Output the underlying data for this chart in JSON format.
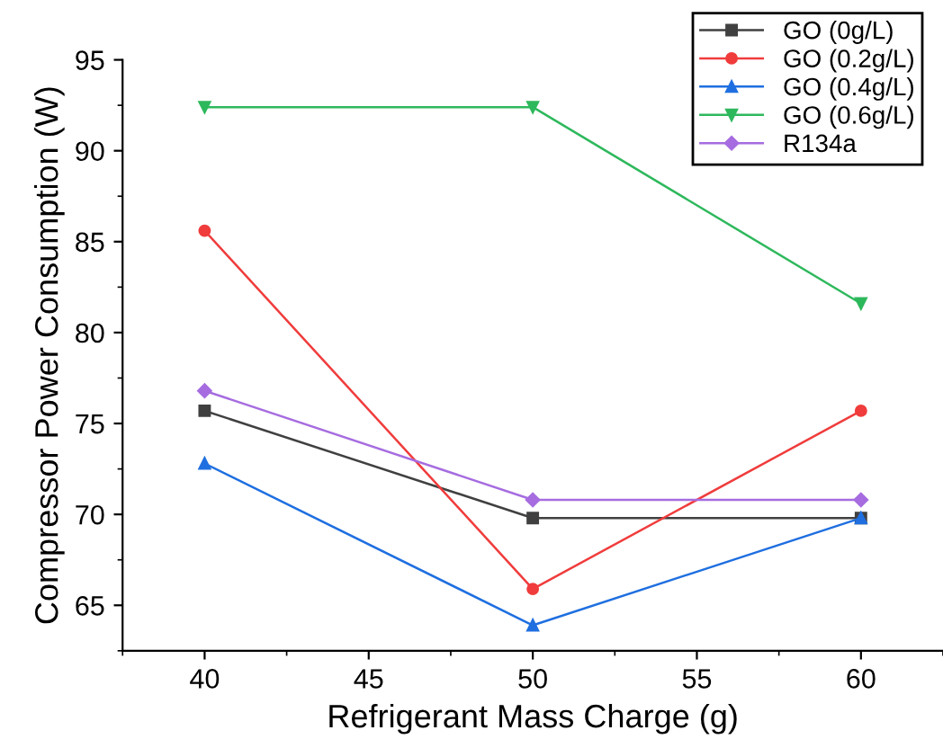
{
  "chart_data": {
    "type": "line",
    "xlabel": "Refrigerant Mass Charge (g)",
    "ylabel": "Compressor Power Consumption (W)",
    "x": [
      40,
      50,
      60
    ],
    "xlim": [
      37.5,
      62.5
    ],
    "xticks": [
      40,
      45,
      50,
      55,
      60
    ],
    "ylim": [
      62.5,
      95
    ],
    "yticks": [
      65,
      70,
      75,
      80,
      85,
      90,
      95
    ],
    "grid": false,
    "legend": "top right",
    "line_style": "solid",
    "series": [
      {
        "name": "GO (0g/L)",
        "color": "#404040",
        "marker": "square",
        "values": [
          75.7,
          69.8,
          69.8
        ]
      },
      {
        "name": "GO (0.2g/L)",
        "color": "#f03c3c",
        "marker": "circle",
        "values": [
          85.6,
          65.9,
          75.7
        ]
      },
      {
        "name": "GO (0.4g/L)",
        "color": "#1f6fe0",
        "marker": "triangle",
        "values": [
          72.8,
          63.9,
          69.8
        ]
      },
      {
        "name": "GO (0.6g/L)",
        "color": "#2eb85c",
        "marker": "triangle_down",
        "values": [
          92.4,
          92.4,
          81.6
        ]
      },
      {
        "name": "R134a",
        "color": "#a66ce0",
        "marker": "diamond",
        "values": [
          76.8,
          70.8,
          70.8
        ]
      }
    ]
  }
}
